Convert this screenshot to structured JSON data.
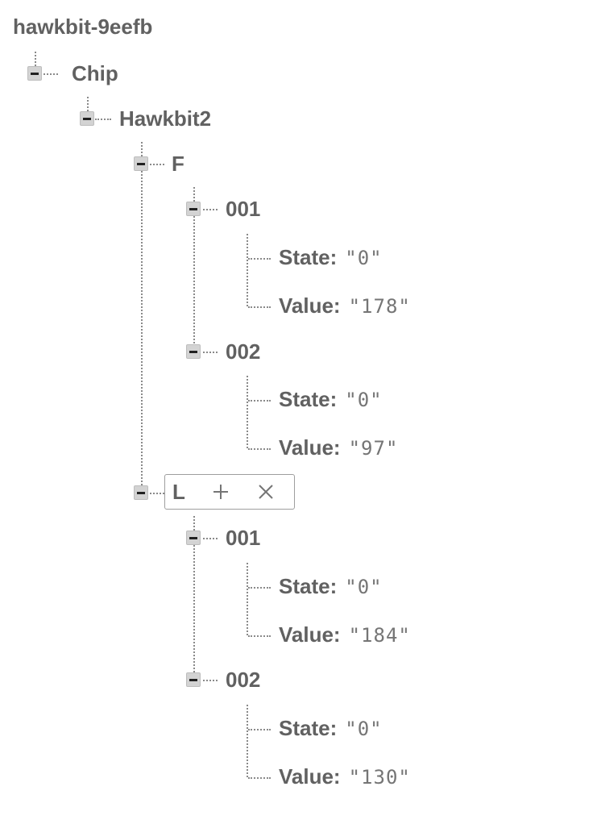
{
  "tree": {
    "root": "hawkbit-9eefb",
    "chip": "Chip",
    "hawkbit2": "Hawkbit2",
    "f": {
      "key": "F",
      "n001": {
        "key": "001",
        "state_key": "State:",
        "state_val": "\"0\"",
        "value_key": "Value:",
        "value_val": "\"178\""
      },
      "n002": {
        "key": "002",
        "state_key": "State:",
        "state_val": "\"0\"",
        "value_key": "Value:",
        "value_val": "\"97\""
      }
    },
    "l": {
      "key": "L",
      "n001": {
        "key": "001",
        "state_key": "State:",
        "state_val": "\"0\"",
        "value_key": "Value:",
        "value_val": "\"184\""
      },
      "n002": {
        "key": "002",
        "state_key": "State:",
        "state_val": "\"0\"",
        "value_key": "Value:",
        "value_val": "\"130\""
      }
    }
  },
  "actions": {
    "add_icon": "plus-icon",
    "delete_icon": "close-icon"
  }
}
